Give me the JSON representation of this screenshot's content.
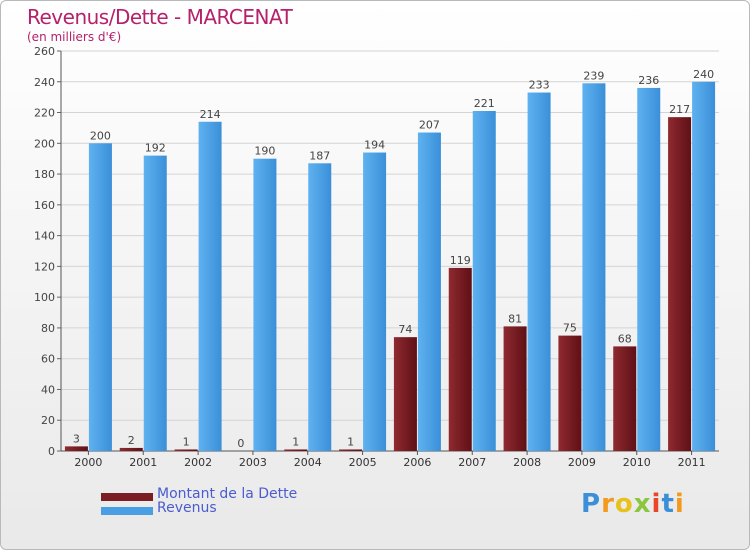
{
  "title": "Revenus/Dette - MARCENAT",
  "subtitle": "(en milliers d'€)",
  "brand": "Proxiti",
  "colors": {
    "dette": "#7a1e24",
    "revenus": "#4a9fe4",
    "title": "#b5216a",
    "legend_text": "#4a5ccf"
  },
  "chart_data": {
    "type": "bar",
    "categories": [
      "2000",
      "2001",
      "2002",
      "2003",
      "2004",
      "2005",
      "2006",
      "2007",
      "2008",
      "2009",
      "2010",
      "2011"
    ],
    "series": [
      {
        "name": "Montant de la Dette",
        "values": [
          3,
          2,
          1,
          0,
          1,
          1,
          74,
          119,
          81,
          75,
          68,
          217
        ]
      },
      {
        "name": "Revenus",
        "values": [
          200,
          192,
          214,
          190,
          187,
          194,
          207,
          221,
          233,
          239,
          236,
          240
        ]
      }
    ],
    "yticks": [
      0,
      20,
      40,
      60,
      80,
      100,
      120,
      140,
      160,
      180,
      200,
      220,
      240,
      260
    ],
    "ylim": [
      0,
      260
    ],
    "grid": true,
    "legend_position": "bottom-left"
  }
}
